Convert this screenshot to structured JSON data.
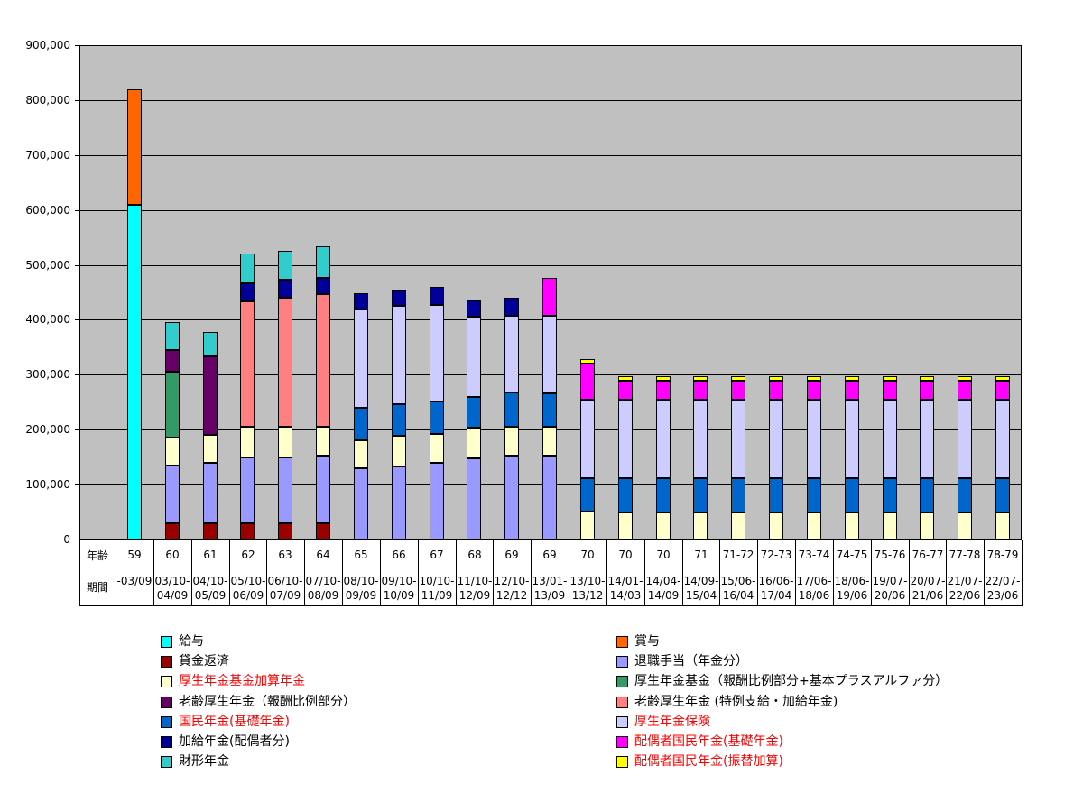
{
  "chart_data": {
    "type": "bar",
    "stacked": true,
    "title": "",
    "background_color": "#FFFFFF",
    "plot_background_color": "#C0C0C0",
    "gridline_color": "#000000",
    "legend_position": "bottom-two-columns",
    "y_axis": {
      "min": 0,
      "max": 900000,
      "step": 100000,
      "labels": [
        "0",
        "100,000",
        "200,000",
        "300,000",
        "400,000",
        "500,000",
        "600,000",
        "700,000",
        "800,000",
        "900,000"
      ]
    },
    "x_axis": {
      "header_rows": [
        "年齢",
        "期間"
      ],
      "categories": [
        {
          "age": "59",
          "period": [
            "-03/09"
          ]
        },
        {
          "age": "60",
          "period": [
            "03/10-",
            "04/09"
          ]
        },
        {
          "age": "61",
          "period": [
            "04/10-",
            "05/09"
          ]
        },
        {
          "age": "62",
          "period": [
            "05/10-",
            "06/09"
          ]
        },
        {
          "age": "63",
          "period": [
            "06/10-",
            "07/09"
          ]
        },
        {
          "age": "64",
          "period": [
            "07/10-",
            "08/09"
          ]
        },
        {
          "age": "65",
          "period": [
            "08/10-",
            "09/09"
          ]
        },
        {
          "age": "66",
          "period": [
            "09/10-",
            "10/09"
          ]
        },
        {
          "age": "67",
          "period": [
            "10/10-",
            "11/09"
          ]
        },
        {
          "age": "68",
          "period": [
            "11/10-",
            "12/09"
          ]
        },
        {
          "age": "69",
          "period": [
            "12/10-",
            "12/12"
          ]
        },
        {
          "age": "69",
          "period": [
            "13/01-",
            "13/09"
          ]
        },
        {
          "age": "70",
          "period": [
            "13/10-",
            "13/12"
          ]
        },
        {
          "age": "70",
          "period": [
            "14/01-",
            "14/03"
          ]
        },
        {
          "age": "70",
          "period": [
            "14/04-",
            "14/09"
          ]
        },
        {
          "age": "71",
          "period": [
            "14/09-",
            "15/04"
          ]
        },
        {
          "age": "71-72",
          "period": [
            "15/06-",
            "16/04"
          ]
        },
        {
          "age": "72-73",
          "period": [
            "16/06-",
            "17/04"
          ]
        },
        {
          "age": "73-74",
          "period": [
            "17/06-",
            "18/06"
          ]
        },
        {
          "age": "74-75",
          "period": [
            "18/06-",
            "19/06"
          ]
        },
        {
          "age": "75-76",
          "period": [
            "19/07-",
            "20/06"
          ]
        },
        {
          "age": "76-77",
          "period": [
            "20/07-",
            "21/06"
          ]
        },
        {
          "age": "77-78",
          "period": [
            "21/07-",
            "22/06"
          ]
        },
        {
          "age": "78-79",
          "period": [
            "22/07-",
            "23/06"
          ]
        }
      ]
    },
    "series": [
      {
        "id": "kyuyo",
        "label": "給与",
        "color": "#00FFFF",
        "label_color": "#000000"
      },
      {
        "id": "chingin_hensai",
        "label": "貸金返済",
        "color": "#990000",
        "label_color": "#000000"
      },
      {
        "id": "kikin_kasan",
        "label": "厚生年金基金加算年金",
        "color": "#FFFFCC",
        "label_color": "#FF0000"
      },
      {
        "id": "rorei_hoshu",
        "label": "老齢厚生年金（報酬比例部分）",
        "color": "#660066",
        "label_color": "#000000"
      },
      {
        "id": "kokumin_kiso",
        "label": "国民年金(基礎年金)",
        "color": "#0066CC",
        "label_color": "#FF0000"
      },
      {
        "id": "kakyu_haigusha",
        "label": "加給年金(配偶者分)",
        "color": "#000099",
        "label_color": "#000000"
      },
      {
        "id": "zaikei",
        "label": "財形年金",
        "color": "#33CCCC",
        "label_color": "#000000"
      },
      {
        "id": "shoyo",
        "label": "賞与",
        "color": "#FF6600",
        "label_color": "#000000"
      },
      {
        "id": "taishoku_teate",
        "label": "退職手当（年金分）",
        "color": "#9999FF",
        "label_color": "#000000"
      },
      {
        "id": "kosei_kikin",
        "label": "厚生年金基金（報酬比例部分+基本プラスアルファ分）",
        "color": "#339966",
        "label_color": "#000000"
      },
      {
        "id": "rorei_tokurei",
        "label": "老齢厚生年金 (特例支給・加給年金)",
        "color": "#FF8080",
        "label_color": "#000000"
      },
      {
        "id": "kosei_hoken",
        "label": "厚生年金保険",
        "color": "#CCCCFF",
        "label_color": "#FF0000"
      },
      {
        "id": "haigusha_kiso",
        "label": "配偶者国民年金(基礎年金)",
        "color": "#FF00FF",
        "label_color": "#FF0000"
      },
      {
        "id": "haigusha_furikae",
        "label": "配偶者国民年金(振替加算)",
        "color": "#FFFF00",
        "label_color": "#FF0000"
      }
    ],
    "legend": {
      "left_column": [
        "kyuyo",
        "chingin_hensai",
        "kikin_kasan",
        "rorei_hoshu",
        "kokumin_kiso",
        "kakyu_haigusha",
        "zaikei"
      ],
      "right_column": [
        "shoyo",
        "taishoku_teate",
        "kosei_kikin",
        "rorei_tokurei",
        "kosei_hoken",
        "haigusha_kiso",
        "haigusha_furikae"
      ]
    },
    "bars": [
      {
        "category": "59",
        "segments": [
          {
            "series": "kyuyo",
            "value": 610000
          },
          {
            "series": "shoyo",
            "value": 210000
          }
        ]
      },
      {
        "category": "60",
        "segments": [
          {
            "series": "chingin_hensai",
            "value": 30000
          },
          {
            "series": "taishoku_teate",
            "value": 105000
          },
          {
            "series": "kikin_kasan",
            "value": 50000
          },
          {
            "series": "kosei_kikin",
            "value": 120000
          },
          {
            "series": "rorei_hoshu",
            "value": 40000
          },
          {
            "series": "zaikei",
            "value": 50000
          }
        ]
      },
      {
        "category": "61",
        "segments": [
          {
            "series": "chingin_hensai",
            "value": 30000
          },
          {
            "series": "taishoku_teate",
            "value": 110000
          },
          {
            "series": "kikin_kasan",
            "value": 50000
          },
          {
            "series": "rorei_hoshu",
            "value": 143000
          },
          {
            "series": "zaikei",
            "value": 45000
          }
        ]
      },
      {
        "category": "62",
        "segments": [
          {
            "series": "chingin_hensai",
            "value": 30000
          },
          {
            "series": "taishoku_teate",
            "value": 120000
          },
          {
            "series": "kikin_kasan",
            "value": 55000
          },
          {
            "series": "rorei_tokurei",
            "value": 228000
          },
          {
            "series": "kakyu_haigusha",
            "value": 33000
          },
          {
            "series": "zaikei",
            "value": 55000
          }
        ]
      },
      {
        "category": "63",
        "segments": [
          {
            "series": "chingin_hensai",
            "value": 30000
          },
          {
            "series": "taishoku_teate",
            "value": 120000
          },
          {
            "series": "kikin_kasan",
            "value": 55000
          },
          {
            "series": "rorei_tokurei",
            "value": 235000
          },
          {
            "series": "kakyu_haigusha",
            "value": 33000
          },
          {
            "series": "zaikei",
            "value": 52000
          }
        ]
      },
      {
        "category": "64",
        "segments": [
          {
            "series": "chingin_hensai",
            "value": 30000
          },
          {
            "series": "taishoku_teate",
            "value": 123000
          },
          {
            "series": "kikin_kasan",
            "value": 52000
          },
          {
            "series": "rorei_tokurei",
            "value": 241000
          },
          {
            "series": "kakyu_haigusha",
            "value": 30000
          },
          {
            "series": "zaikei",
            "value": 57000
          }
        ]
      },
      {
        "category": "65",
        "segments": [
          {
            "series": "taishoku_teate",
            "value": 130000
          },
          {
            "series": "kikin_kasan",
            "value": 50000
          },
          {
            "series": "kokumin_kiso",
            "value": 60000
          },
          {
            "series": "kosei_hoken",
            "value": 178000
          },
          {
            "series": "kakyu_haigusha",
            "value": 30000
          }
        ]
      },
      {
        "category": "66",
        "segments": [
          {
            "series": "taishoku_teate",
            "value": 133000
          },
          {
            "series": "kikin_kasan",
            "value": 56000
          },
          {
            "series": "kokumin_kiso",
            "value": 58000
          },
          {
            "series": "kosei_hoken",
            "value": 178000
          },
          {
            "series": "kakyu_haigusha",
            "value": 30000
          }
        ]
      },
      {
        "category": "67",
        "segments": [
          {
            "series": "taishoku_teate",
            "value": 140000
          },
          {
            "series": "kikin_kasan",
            "value": 52000
          },
          {
            "series": "kokumin_kiso",
            "value": 60000
          },
          {
            "series": "kosei_hoken",
            "value": 175000
          },
          {
            "series": "kakyu_haigusha",
            "value": 33000
          }
        ]
      },
      {
        "category": "68",
        "segments": [
          {
            "series": "taishoku_teate",
            "value": 147000
          },
          {
            "series": "kikin_kasan",
            "value": 56000
          },
          {
            "series": "kokumin_kiso",
            "value": 57000
          },
          {
            "series": "kosei_hoken",
            "value": 145000
          },
          {
            "series": "kakyu_haigusha",
            "value": 31000
          }
        ]
      },
      {
        "category": "69",
        "segments": [
          {
            "series": "taishoku_teate",
            "value": 153000
          },
          {
            "series": "kikin_kasan",
            "value": 53000
          },
          {
            "series": "kokumin_kiso",
            "value": 61000
          },
          {
            "series": "kosei_hoken",
            "value": 141000
          },
          {
            "series": "kakyu_haigusha",
            "value": 32000
          }
        ]
      },
      {
        "category": "69",
        "segments": [
          {
            "series": "taishoku_teate",
            "value": 153000
          },
          {
            "series": "kikin_kasan",
            "value": 52000
          },
          {
            "series": "kokumin_kiso",
            "value": 61000
          },
          {
            "series": "kosei_hoken",
            "value": 141000
          },
          {
            "series": "haigusha_kiso",
            "value": 70000
          }
        ]
      },
      {
        "category": "70",
        "segments": [
          {
            "series": "kikin_kasan",
            "value": 51000
          },
          {
            "series": "kokumin_kiso",
            "value": 61000
          },
          {
            "series": "kosei_hoken",
            "value": 142000
          },
          {
            "series": "haigusha_kiso",
            "value": 66000
          },
          {
            "series": "haigusha_furikae",
            "value": 8000
          }
        ]
      },
      {
        "category": "70",
        "segments": [
          {
            "series": "kikin_kasan",
            "value": 50000
          },
          {
            "series": "kokumin_kiso",
            "value": 62000
          },
          {
            "series": "kosei_hoken",
            "value": 142000
          },
          {
            "series": "haigusha_kiso",
            "value": 35000
          },
          {
            "series": "haigusha_furikae",
            "value": 8000
          }
        ]
      },
      {
        "category": "70",
        "segments": [
          {
            "series": "kikin_kasan",
            "value": 50000
          },
          {
            "series": "kokumin_kiso",
            "value": 62000
          },
          {
            "series": "kosei_hoken",
            "value": 142000
          },
          {
            "series": "haigusha_kiso",
            "value": 35000
          },
          {
            "series": "haigusha_furikae",
            "value": 8000
          }
        ]
      },
      {
        "category": "71",
        "segments": [
          {
            "series": "kikin_kasan",
            "value": 50000
          },
          {
            "series": "kokumin_kiso",
            "value": 62000
          },
          {
            "series": "kosei_hoken",
            "value": 142000
          },
          {
            "series": "haigusha_kiso",
            "value": 35000
          },
          {
            "series": "haigusha_furikae",
            "value": 8000
          }
        ]
      },
      {
        "category": "71-72",
        "segments": [
          {
            "series": "kikin_kasan",
            "value": 50000
          },
          {
            "series": "kokumin_kiso",
            "value": 62000
          },
          {
            "series": "kosei_hoken",
            "value": 142000
          },
          {
            "series": "haigusha_kiso",
            "value": 35000
          },
          {
            "series": "haigusha_furikae",
            "value": 8000
          }
        ]
      },
      {
        "category": "72-73",
        "segments": [
          {
            "series": "kikin_kasan",
            "value": 50000
          },
          {
            "series": "kokumin_kiso",
            "value": 62000
          },
          {
            "series": "kosei_hoken",
            "value": 142000
          },
          {
            "series": "haigusha_kiso",
            "value": 35000
          },
          {
            "series": "haigusha_furikae",
            "value": 8000
          }
        ]
      },
      {
        "category": "73-74",
        "segments": [
          {
            "series": "kikin_kasan",
            "value": 50000
          },
          {
            "series": "kokumin_kiso",
            "value": 62000
          },
          {
            "series": "kosei_hoken",
            "value": 142000
          },
          {
            "series": "haigusha_kiso",
            "value": 35000
          },
          {
            "series": "haigusha_furikae",
            "value": 8000
          }
        ]
      },
      {
        "category": "74-75",
        "segments": [
          {
            "series": "kikin_kasan",
            "value": 50000
          },
          {
            "series": "kokumin_kiso",
            "value": 62000
          },
          {
            "series": "kosei_hoken",
            "value": 142000
          },
          {
            "series": "haigusha_kiso",
            "value": 35000
          },
          {
            "series": "haigusha_furikae",
            "value": 8000
          }
        ]
      },
      {
        "category": "75-76",
        "segments": [
          {
            "series": "kikin_kasan",
            "value": 50000
          },
          {
            "series": "kokumin_kiso",
            "value": 62000
          },
          {
            "series": "kosei_hoken",
            "value": 142000
          },
          {
            "series": "haigusha_kiso",
            "value": 35000
          },
          {
            "series": "haigusha_furikae",
            "value": 8000
          }
        ]
      },
      {
        "category": "76-77",
        "segments": [
          {
            "series": "kikin_kasan",
            "value": 50000
          },
          {
            "series": "kokumin_kiso",
            "value": 62000
          },
          {
            "series": "kosei_hoken",
            "value": 142000
          },
          {
            "series": "haigusha_kiso",
            "value": 35000
          },
          {
            "series": "haigusha_furikae",
            "value": 8000
          }
        ]
      },
      {
        "category": "77-78",
        "segments": [
          {
            "series": "kikin_kasan",
            "value": 50000
          },
          {
            "series": "kokumin_kiso",
            "value": 62000
          },
          {
            "series": "kosei_hoken",
            "value": 142000
          },
          {
            "series": "haigusha_kiso",
            "value": 35000
          },
          {
            "series": "haigusha_furikae",
            "value": 8000
          }
        ]
      },
      {
        "category": "78-79",
        "segments": [
          {
            "series": "kikin_kasan",
            "value": 50000
          },
          {
            "series": "kokumin_kiso",
            "value": 62000
          },
          {
            "series": "kosei_hoken",
            "value": 142000
          },
          {
            "series": "haigusha_kiso",
            "value": 35000
          },
          {
            "series": "haigusha_furikae",
            "value": 8000
          }
        ]
      }
    ]
  }
}
